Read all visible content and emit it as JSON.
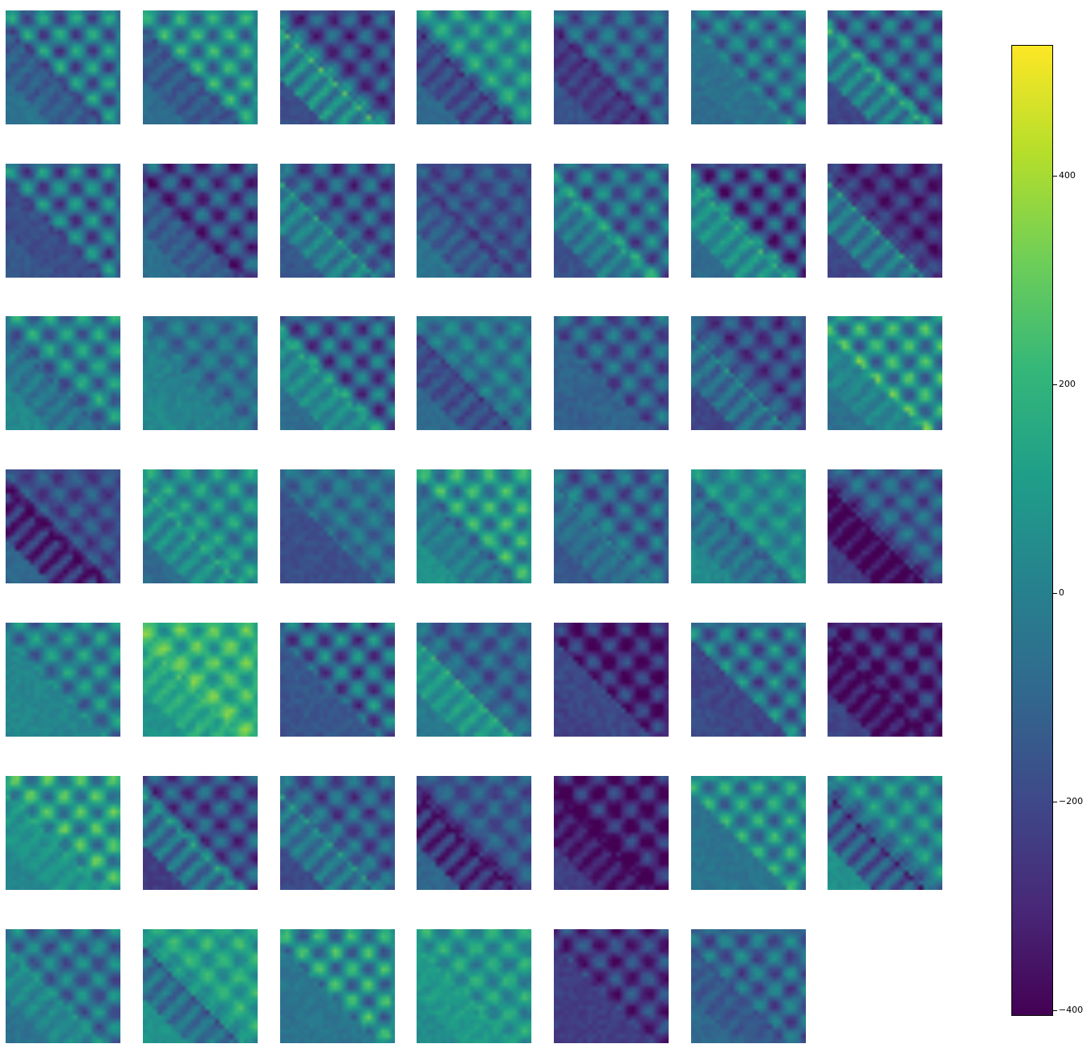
{
  "chart_data": {
    "type": "heatmap",
    "title": "",
    "layout": "grid of feature-map heatmaps (7 columns x 7 rows, last row 6 panels) sharing one colorbar",
    "panel_count": 48,
    "colormap": "viridis",
    "colormap_stops": [
      "#440154",
      "#482878",
      "#3e4989",
      "#31688e",
      "#26828e",
      "#1f9e89",
      "#35b779",
      "#6ece58",
      "#b5de2b",
      "#fde725"
    ],
    "axes": "off",
    "colorbar": {
      "orientation": "vertical",
      "position": "right",
      "range": [
        -405,
        525
      ],
      "ticks": [
        400,
        200,
        0,
        -200,
        -400
      ],
      "tick_labels": [
        "400",
        "200",
        "0",
        "−200",
        "−400"
      ]
    }
  }
}
